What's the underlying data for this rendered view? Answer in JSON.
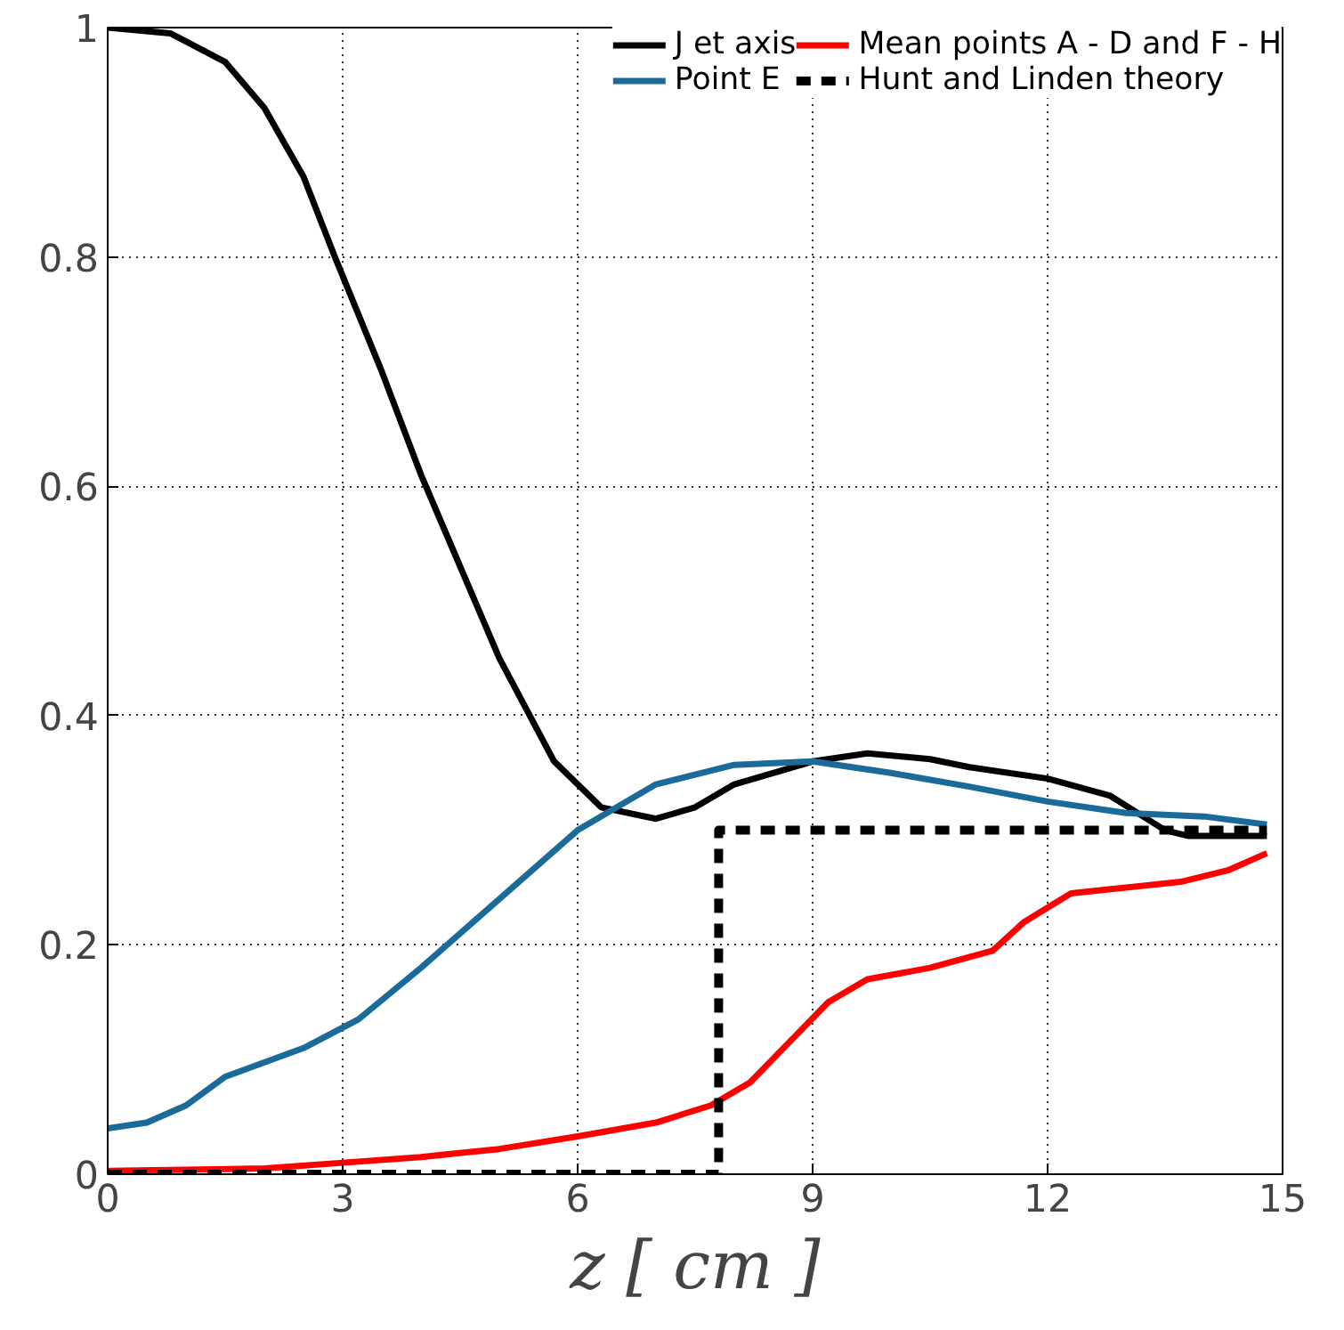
{
  "chart_data": {
    "type": "line",
    "xlabel": "z [ cm ]",
    "xlim": [
      0,
      15
    ],
    "ylim": [
      0,
      1
    ],
    "xticks": [
      0,
      3,
      6,
      9,
      12,
      15
    ],
    "yticks": [
      0,
      0.2,
      0.4,
      0.6,
      0.8,
      1
    ],
    "grid": true,
    "legend": "top right",
    "line_style": "solid",
    "series": [
      {
        "name": "J et axis",
        "color": "#000000",
        "x": [
          0,
          0.8,
          1.5,
          2,
          2.5,
          2.9,
          3.5,
          4,
          4.5,
          5,
          5.7,
          6.3,
          7,
          7.5,
          8,
          9,
          9.7,
          10.5,
          11,
          12,
          12.8,
          13.5,
          13.8,
          14.3,
          14.8
        ],
        "values": [
          1,
          0.995,
          0.97,
          0.93,
          0.87,
          0.8,
          0.7,
          0.61,
          0.53,
          0.45,
          0.36,
          0.32,
          0.31,
          0.32,
          0.34,
          0.36,
          0.367,
          0.362,
          0.355,
          0.345,
          0.33,
          0.3,
          0.295,
          0.295,
          0.295
        ]
      },
      {
        "name": "Point E",
        "color": "#1a6a9a",
        "x": [
          0,
          0.5,
          1,
          1.5,
          2.5,
          3.2,
          4,
          5,
          6,
          7,
          8,
          9,
          10,
          11,
          12,
          13,
          14,
          14.8
        ],
        "values": [
          0.04,
          0.045,
          0.06,
          0.085,
          0.11,
          0.135,
          0.18,
          0.24,
          0.3,
          0.34,
          0.357,
          0.36,
          0.35,
          0.338,
          0.325,
          0.315,
          0.312,
          0.305
        ]
      },
      {
        "name": "Mean points A - D and F - H",
        "color": "#ff0000",
        "x": [
          0,
          2,
          3,
          4,
          5,
          6,
          7,
          7.7,
          8.2,
          8.7,
          9.2,
          9.7,
          10.5,
          11.3,
          11.7,
          12.3,
          13,
          13.7,
          14.3,
          14.8
        ],
        "values": [
          0.003,
          0.005,
          0.01,
          0.015,
          0.022,
          0.033,
          0.045,
          0.06,
          0.08,
          0.115,
          0.15,
          0.17,
          0.18,
          0.195,
          0.22,
          0.245,
          0.25,
          0.255,
          0.265,
          0.28
        ]
      },
      {
        "name": "Hunt and Linden theory",
        "color": "#000000",
        "line_style": "dashed",
        "x": [
          0,
          7.8,
          7.8,
          14.8
        ],
        "values": [
          0,
          0,
          0.3,
          0.3
        ]
      }
    ]
  }
}
